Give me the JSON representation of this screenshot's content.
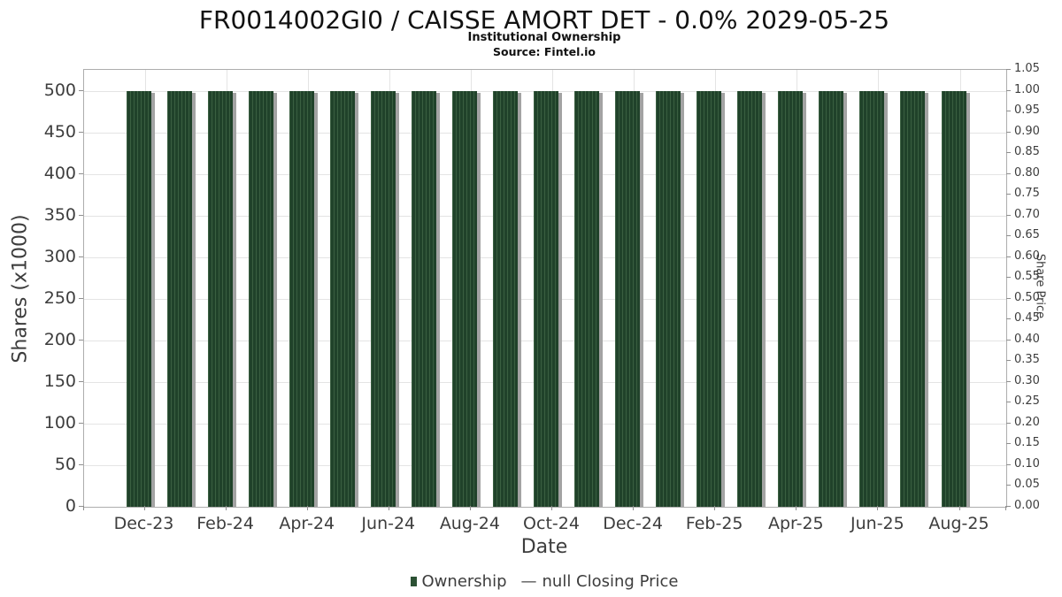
{
  "header": {
    "title": "FR0014002GI0 / CAISSE AMORT DET - 0.0% 2029-05-25",
    "subtitle": "Institutional Ownership",
    "source": "Source: Fintel.io"
  },
  "axes": {
    "x_title": "Date",
    "y_left_title": "Shares (x1000)",
    "y_right_title": "Share Price"
  },
  "legend": {
    "ownership_label": "Ownership",
    "line_glyph": "—",
    "price_label": "null Closing Price"
  },
  "colors": {
    "bar_green_dark": "#20422a",
    "bar_green_light": "#3a5f41",
    "bar_shadow": "#a3a3a3",
    "legend_green": "#2c5134",
    "gridline": "#e4e4e4",
    "plot_border": "#adadad",
    "text": "#3d3d3d"
  },
  "chart_data": {
    "type": "bar",
    "title": "FR0014002GI0 / CAISSE AMORT DET - 0.0% 2029-05-25",
    "subtitle": "Institutional Ownership",
    "source": "Source: Fintel.io",
    "xlabel": "Date",
    "ylabel_left": "Shares (x1000)",
    "ylabel_right": "Share Price",
    "categories": [
      "Dec-23",
      "Jan-24",
      "Feb-24",
      "Mar-24",
      "Apr-24",
      "May-24",
      "Jun-24",
      "Jul-24",
      "Aug-24",
      "Sep-24",
      "Oct-24",
      "Nov-24",
      "Dec-24",
      "Jan-25",
      "Feb-25",
      "Mar-25",
      "Apr-25",
      "May-25",
      "Jun-25",
      "Jul-25",
      "Aug-25"
    ],
    "series": [
      {
        "name": "Ownership",
        "type": "bar",
        "units": "shares x1000",
        "color": "#2c5134",
        "values": [
          500,
          500,
          500,
          500,
          500,
          500,
          500,
          500,
          500,
          500,
          500,
          500,
          500,
          500,
          500,
          500,
          500,
          500,
          500,
          500,
          500
        ]
      },
      {
        "name": "null Closing Price",
        "type": "line",
        "axis": "right",
        "values": []
      }
    ],
    "x_tick_labels": [
      "Dec-23",
      "Feb-24",
      "Apr-24",
      "Jun-24",
      "Aug-24",
      "Oct-24",
      "Dec-24",
      "Feb-25",
      "Apr-25",
      "Jun-25",
      "Aug-25"
    ],
    "y_left_ticks": [
      0,
      50,
      100,
      150,
      200,
      250,
      300,
      350,
      400,
      450,
      500
    ],
    "y_right_ticks": [
      "0.00",
      "0.05",
      "0.10",
      "0.15",
      "0.20",
      "0.25",
      "0.30",
      "0.35",
      "0.40",
      "0.45",
      "0.50",
      "0.55",
      "0.60",
      "0.65",
      "0.70",
      "0.75",
      "0.80",
      "0.85",
      "0.90",
      "0.95",
      "1.00",
      "1.05"
    ],
    "ylim_left": [
      0,
      525
    ],
    "ylim_right": [
      0,
      1.05
    ],
    "grid": true,
    "legend_position": "bottom"
  }
}
